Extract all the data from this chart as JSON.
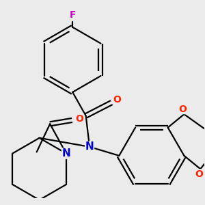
{
  "bg_color": "#ebebeb",
  "atom_colors": {
    "F": "#cc00cc",
    "O": "#ff2200",
    "N": "#0000cc",
    "C": "#000000"
  },
  "bond_color": "#000000",
  "bond_width": 1.6,
  "figsize": [
    3.0,
    3.0
  ],
  "dpi": 100
}
